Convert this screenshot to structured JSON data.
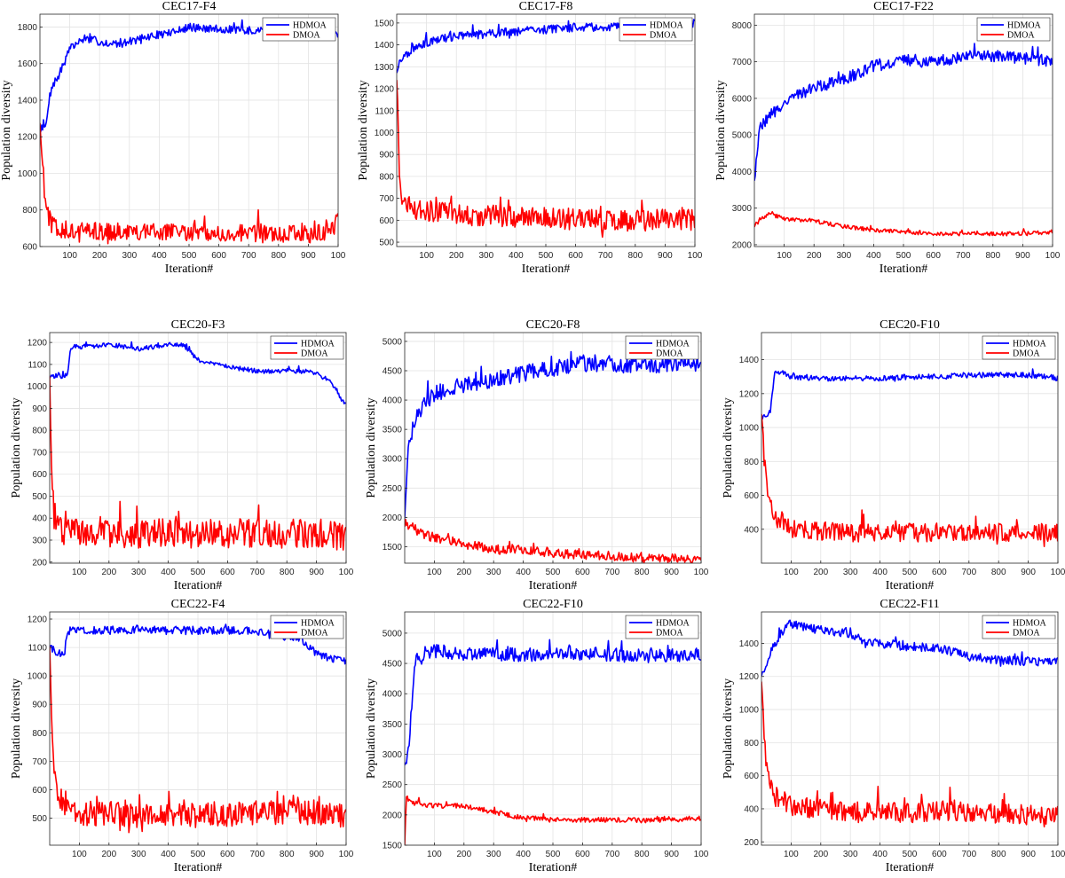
{
  "figure": {
    "series_colors": {
      "HDMOA": "#0000ff",
      "DMOA": "#ff0000"
    },
    "grid": true,
    "legend_position": "top-right"
  },
  "chart_data": [
    {
      "type": "line",
      "title": "CEC17-F4",
      "xlabel": "Iteration#",
      "ylabel": "Population diversity",
      "x_tick_labels": [
        "100",
        "200",
        "300",
        "400",
        "500",
        "600",
        "700",
        "800",
        "900",
        "100"
      ],
      "xlim": [
        0,
        1000
      ],
      "ylim": [
        600,
        1870
      ],
      "yticks": [
        600,
        800,
        1000,
        1200,
        1400,
        1600,
        1800
      ],
      "series": [
        {
          "name": "HDMOA",
          "x": [
            0,
            10,
            20,
            30,
            40,
            60,
            80,
            100,
            150,
            200,
            250,
            300,
            350,
            400,
            450,
            500,
            550,
            600,
            700,
            800,
            900,
            950,
            1000
          ],
          "y": [
            1230,
            1260,
            1250,
            1400,
            1480,
            1520,
            1600,
            1680,
            1740,
            1720,
            1710,
            1720,
            1740,
            1760,
            1770,
            1800,
            1790,
            1790,
            1780,
            1770,
            1770,
            1780,
            1760
          ],
          "noise": 25
        },
        {
          "name": "DMOA",
          "x": [
            0,
            10,
            20,
            40,
            60,
            100,
            200,
            300,
            400,
            500,
            600,
            700,
            800,
            900,
            950,
            980,
            1000
          ],
          "y": [
            1300,
            1000,
            800,
            720,
            700,
            690,
            680,
            680,
            680,
            680,
            680,
            670,
            670,
            670,
            670,
            700,
            740
          ],
          "noise": 55
        }
      ]
    },
    {
      "type": "line",
      "title": "CEC17-F8",
      "xlabel": "Iteration#",
      "ylabel": "Population diversity",
      "x_tick_labels": [
        "100",
        "200",
        "300",
        "400",
        "500",
        "600",
        "700",
        "800",
        "900",
        "100"
      ],
      "xlim": [
        0,
        1000
      ],
      "ylim": [
        480,
        1540
      ],
      "yticks": [
        500,
        600,
        700,
        800,
        900,
        1000,
        1100,
        1200,
        1300,
        1400,
        1500
      ],
      "series": [
        {
          "name": "HDMOA",
          "x": [
            0,
            10,
            30,
            60,
            100,
            150,
            200,
            300,
            400,
            500,
            600,
            700,
            800,
            900,
            1000
          ],
          "y": [
            1280,
            1320,
            1350,
            1380,
            1410,
            1430,
            1440,
            1450,
            1460,
            1470,
            1480,
            1480,
            1490,
            1490,
            1500
          ],
          "noise": 22
        },
        {
          "name": "DMOA",
          "x": [
            0,
            5,
            10,
            20,
            40,
            100,
            200,
            300,
            400,
            500,
            600,
            700,
            800,
            900,
            1000
          ],
          "y": [
            1260,
            1000,
            800,
            700,
            660,
            640,
            630,
            620,
            615,
            610,
            605,
            600,
            600,
            600,
            600
          ],
          "noise": 55
        }
      ]
    },
    {
      "type": "line",
      "title": "CEC17-F22",
      "xlabel": "Iteration#",
      "ylabel": "Population diversity",
      "x_tick_labels": [
        "100",
        "200",
        "300",
        "400",
        "500",
        "600",
        "700",
        "800",
        "900",
        "100"
      ],
      "xlim": [
        0,
        1000
      ],
      "ylim": [
        1950,
        8300
      ],
      "yticks": [
        2000,
        3000,
        4000,
        5000,
        6000,
        7000,
        8000
      ],
      "series": [
        {
          "name": "HDMOA",
          "x": [
            0,
            10,
            20,
            50,
            100,
            150,
            200,
            250,
            300,
            350,
            400,
            450,
            500,
            550,
            600,
            700,
            800,
            900,
            1000
          ],
          "y": [
            3800,
            4600,
            5200,
            5500,
            5900,
            6100,
            6300,
            6400,
            6500,
            6700,
            6900,
            6950,
            7050,
            7000,
            7050,
            7100,
            7150,
            7100,
            7000
          ],
          "noise": 180
        },
        {
          "name": "DMOA",
          "x": [
            0,
            20,
            50,
            100,
            200,
            300,
            400,
            500,
            600,
            700,
            800,
            900,
            1000
          ],
          "y": [
            2500,
            2700,
            2850,
            2700,
            2650,
            2500,
            2400,
            2350,
            2300,
            2300,
            2300,
            2300,
            2350
          ],
          "noise": 60
        }
      ]
    },
    {
      "type": "line",
      "title": "CEC20-F3",
      "xlabel": "Iteration#",
      "ylabel": "Population diversity",
      "x_tick_labels": [
        "100",
        "200",
        "300",
        "400",
        "500",
        "600",
        "700",
        "800",
        "900",
        "100"
      ],
      "xlim": [
        0,
        1000
      ],
      "ylim": [
        195,
        1245
      ],
      "yticks": [
        200,
        300,
        400,
        500,
        600,
        700,
        800,
        900,
        1000,
        1100,
        1200
      ],
      "series": [
        {
          "name": "HDMOA",
          "x": [
            0,
            60,
            70,
            100,
            200,
            300,
            400,
            450,
            500,
            600,
            700,
            800,
            850,
            900,
            950,
            980,
            1000
          ],
          "y": [
            1040,
            1050,
            1180,
            1180,
            1190,
            1170,
            1190,
            1190,
            1120,
            1090,
            1070,
            1070,
            1070,
            1060,
            1020,
            950,
            910
          ],
          "noise": 12
        },
        {
          "name": "DMOA",
          "x": [
            0,
            5,
            15,
            30,
            100,
            300,
            500,
            700,
            900,
            1000
          ],
          "y": [
            1060,
            700,
            420,
            340,
            330,
            330,
            330,
            330,
            330,
            320
          ],
          "noise": 75
        }
      ]
    },
    {
      "type": "line",
      "title": "CEC20-F8",
      "xlabel": "Iteration#",
      "ylabel": "Population diversity",
      "x_tick_labels": [
        "100",
        "200",
        "300",
        "400",
        "500",
        "600",
        "700",
        "800",
        "900",
        "100"
      ],
      "xlim": [
        0,
        1000
      ],
      "ylim": [
        1220,
        5150
      ],
      "yticks": [
        1500,
        2000,
        2500,
        3000,
        3500,
        4000,
        4500,
        5000
      ],
      "series": [
        {
          "name": "HDMOA",
          "x": [
            0,
            10,
            20,
            40,
            60,
            100,
            150,
            200,
            300,
            400,
            500,
            600,
            700,
            800,
            900,
            1000
          ],
          "y": [
            2000,
            3100,
            3400,
            3700,
            3900,
            4100,
            4200,
            4250,
            4350,
            4450,
            4550,
            4600,
            4600,
            4600,
            4600,
            4650
          ],
          "noise": 150
        },
        {
          "name": "DMOA",
          "x": [
            0,
            20,
            50,
            100,
            200,
            300,
            400,
            500,
            600,
            700,
            800,
            900,
            1000
          ],
          "y": [
            1900,
            1850,
            1750,
            1650,
            1550,
            1450,
            1450,
            1400,
            1350,
            1350,
            1300,
            1300,
            1300
          ],
          "noise": 90
        }
      ]
    },
    {
      "type": "line",
      "title": "CEC20-F10",
      "xlabel": "Iteration#",
      "ylabel": "Population diversity",
      "x_tick_labels": [
        "100",
        "200",
        "300",
        "400",
        "500",
        "600",
        "700",
        "800",
        "900",
        "100"
      ],
      "xlim": [
        0,
        1000
      ],
      "ylim": [
        200,
        1560
      ],
      "yticks": [
        400,
        600,
        800,
        1000,
        1200,
        1400
      ],
      "series": [
        {
          "name": "HDMOA",
          "x": [
            0,
            20,
            30,
            45,
            60,
            100,
            200,
            300,
            400,
            500,
            600,
            700,
            800,
            900,
            1000
          ],
          "y": [
            1060,
            1080,
            1100,
            1320,
            1330,
            1300,
            1290,
            1290,
            1290,
            1300,
            1300,
            1310,
            1310,
            1310,
            1290
          ],
          "noise": 18
        },
        {
          "name": "DMOA",
          "x": [
            0,
            10,
            20,
            40,
            100,
            200,
            300,
            400,
            500,
            600,
            700,
            800,
            900,
            1000
          ],
          "y": [
            1080,
            800,
            600,
            480,
            400,
            390,
            380,
            380,
            380,
            380,
            380,
            380,
            380,
            380
          ],
          "noise": 60
        }
      ]
    },
    {
      "type": "line",
      "title": "CEC22-F4",
      "xlabel": "Iteration#",
      "ylabel": "Population diversity",
      "x_tick_labels": [
        "100",
        "200",
        "300",
        "400",
        "500",
        "600",
        "700",
        "800",
        "900",
        "100"
      ],
      "xlim": [
        0,
        1000
      ],
      "ylim": [
        405,
        1225
      ],
      "yticks": [
        500,
        600,
        700,
        800,
        900,
        1000,
        1100,
        1200
      ],
      "series": [
        {
          "name": "HDMOA",
          "x": [
            0,
            30,
            50,
            60,
            100,
            200,
            300,
            400,
            500,
            600,
            700,
            750,
            800,
            850,
            900,
            950,
            1000
          ],
          "y": [
            1100,
            1080,
            1080,
            1160,
            1160,
            1160,
            1165,
            1160,
            1160,
            1160,
            1160,
            1140,
            1140,
            1130,
            1080,
            1060,
            1050
          ],
          "noise": 16
        },
        {
          "name": "DMOA",
          "x": [
            0,
            10,
            20,
            40,
            100,
            300,
            500,
            700,
            900,
            1000
          ],
          "y": [
            1100,
            750,
            600,
            560,
            520,
            510,
            510,
            520,
            520,
            510
          ],
          "noise": 50
        }
      ]
    },
    {
      "type": "line",
      "title": "CEC22-F10",
      "xlabel": "Iteration#",
      "ylabel": "Population diversity",
      "x_tick_labels": [
        "100",
        "200",
        "300",
        "400",
        "500",
        "600",
        "700",
        "800",
        "900",
        "100"
      ],
      "xlim": [
        0,
        1000
      ],
      "ylim": [
        1500,
        5350
      ],
      "yticks": [
        1500,
        2000,
        2500,
        3000,
        3500,
        4000,
        4500,
        5000
      ],
      "series": [
        {
          "name": "HDMOA",
          "x": [
            0,
            10,
            20,
            30,
            40,
            60,
            100,
            200,
            300,
            400,
            500,
            600,
            700,
            800,
            900,
            1000
          ],
          "y": [
            2800,
            3000,
            3500,
            4300,
            4600,
            4650,
            4700,
            4650,
            4650,
            4650,
            4650,
            4650,
            4650,
            4620,
            4620,
            4650
          ],
          "noise": 130
        },
        {
          "name": "DMOA",
          "x": [
            0,
            5,
            20,
            100,
            200,
            300,
            400,
            500,
            600,
            700,
            800,
            900,
            1000
          ],
          "y": [
            1500,
            2300,
            2200,
            2150,
            2150,
            2050,
            1950,
            1920,
            1920,
            1920,
            1910,
            1920,
            1950
          ],
          "noise": 45
        }
      ]
    },
    {
      "type": "line",
      "title": "CEC22-F11",
      "xlabel": "Iteration#",
      "ylabel": "Population diversity",
      "x_tick_labels": [
        "100",
        "200",
        "300",
        "400",
        "500",
        "600",
        "700",
        "800",
        "900",
        "100"
      ],
      "xlim": [
        0,
        1000
      ],
      "ylim": [
        180,
        1590
      ],
      "yticks": [
        200,
        400,
        600,
        800,
        1000,
        1200,
        1400
      ],
      "series": [
        {
          "name": "HDMOA",
          "x": [
            0,
            20,
            40,
            60,
            80,
            100,
            200,
            300,
            350,
            400,
            500,
            600,
            700,
            800,
            900,
            1000
          ],
          "y": [
            1200,
            1300,
            1380,
            1440,
            1500,
            1520,
            1480,
            1460,
            1400,
            1400,
            1380,
            1370,
            1320,
            1300,
            1290,
            1290
          ],
          "noise": 30
        },
        {
          "name": "DMOA",
          "x": [
            0,
            10,
            20,
            40,
            100,
            200,
            300,
            400,
            500,
            600,
            700,
            800,
            900,
            1000
          ],
          "y": [
            1150,
            800,
            600,
            480,
            420,
            400,
            380,
            380,
            380,
            380,
            380,
            370,
            360,
            360
          ],
          "noise": 70
        }
      ]
    }
  ]
}
